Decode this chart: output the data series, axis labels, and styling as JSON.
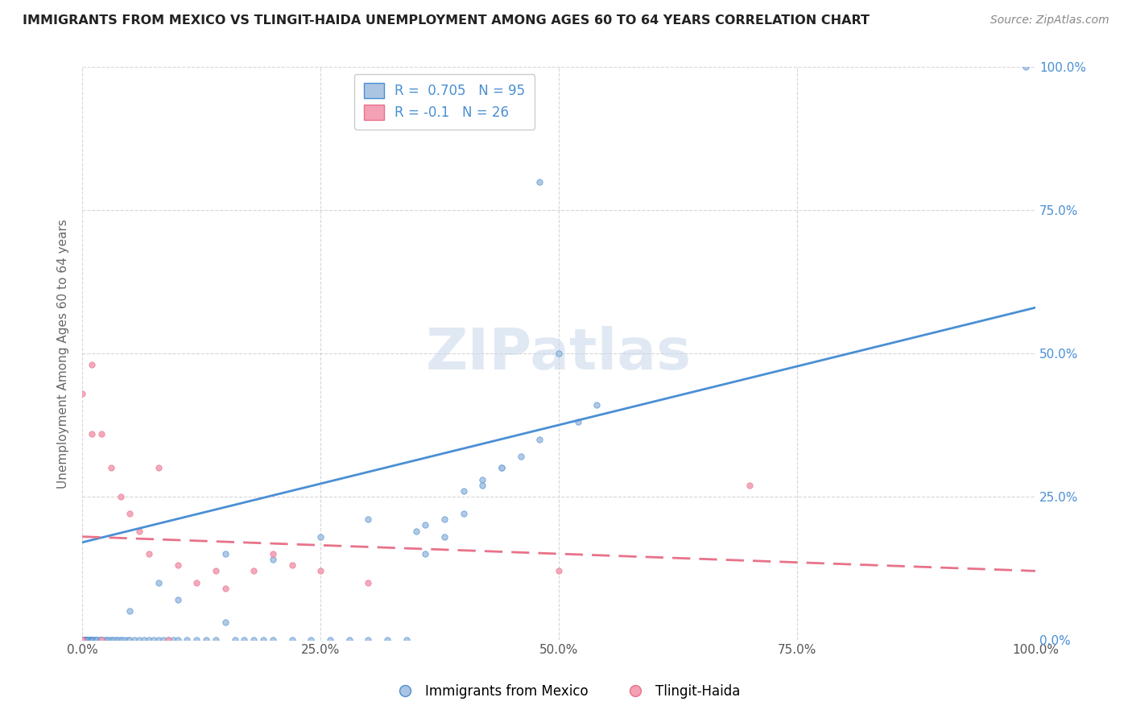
{
  "title": "IMMIGRANTS FROM MEXICO VS TLINGIT-HAIDA UNEMPLOYMENT AMONG AGES 60 TO 64 YEARS CORRELATION CHART",
  "source": "Source: ZipAtlas.com",
  "ylabel": "Unemployment Among Ages 60 to 64 years",
  "xlim": [
    0,
    1.0
  ],
  "ylim": [
    0,
    1.0
  ],
  "xticks": [
    0.0,
    0.25,
    0.5,
    0.75,
    1.0
  ],
  "yticks": [
    0.0,
    0.25,
    0.5,
    0.75,
    1.0
  ],
  "xticklabels": [
    "0.0%",
    "25.0%",
    "50.0%",
    "75.0%",
    "100.0%"
  ],
  "right_yticklabels": [
    "0.0%",
    "25.0%",
    "50.0%",
    "75.0%",
    "100.0%"
  ],
  "blue_R": 0.705,
  "blue_N": 95,
  "pink_R": -0.1,
  "pink_N": 26,
  "blue_color": "#aac4e2",
  "pink_color": "#f4a0b5",
  "blue_line_color": "#4a8fd4",
  "pink_line_color": "#e8728a",
  "blue_line_start_y": 0.17,
  "blue_line_end_y": 0.58,
  "pink_line_start_y": 0.18,
  "pink_line_end_y": 0.12,
  "watermark": "ZIPatlas",
  "legend_label_blue": "Immigrants from Mexico",
  "legend_label_pink": "Tlingit-Haida",
  "blue_x": [
    0.0,
    0.0,
    0.001,
    0.001,
    0.002,
    0.002,
    0.003,
    0.003,
    0.004,
    0.004,
    0.005,
    0.005,
    0.006,
    0.006,
    0.007,
    0.008,
    0.008,
    0.009,
    0.01,
    0.01,
    0.011,
    0.012,
    0.013,
    0.014,
    0.015,
    0.016,
    0.018,
    0.019,
    0.02,
    0.022,
    0.024,
    0.026,
    0.028,
    0.03,
    0.032,
    0.034,
    0.036,
    0.038,
    0.04,
    0.042,
    0.045,
    0.048,
    0.05,
    0.055,
    0.06,
    0.065,
    0.07,
    0.075,
    0.08,
    0.085,
    0.09,
    0.095,
    0.1,
    0.11,
    0.12,
    0.13,
    0.14,
    0.15,
    0.16,
    0.17,
    0.18,
    0.19,
    0.2,
    0.22,
    0.24,
    0.26,
    0.28,
    0.3,
    0.32,
    0.34,
    0.36,
    0.38,
    0.4,
    0.42,
    0.44,
    0.46,
    0.48,
    0.5,
    0.52,
    0.54,
    0.36,
    0.38,
    0.4,
    0.42,
    0.44,
    0.35,
    0.3,
    0.25,
    0.2,
    0.15,
    0.1,
    0.05,
    0.08,
    0.48,
    0.99
  ],
  "blue_y": [
    0.0,
    0.0,
    0.0,
    0.0,
    0.0,
    0.0,
    0.0,
    0.0,
    0.0,
    0.0,
    0.0,
    0.0,
    0.0,
    0.0,
    0.0,
    0.0,
    0.0,
    0.0,
    0.0,
    0.0,
    0.0,
    0.0,
    0.0,
    0.0,
    0.0,
    0.0,
    0.0,
    0.0,
    0.0,
    0.0,
    0.0,
    0.0,
    0.0,
    0.0,
    0.0,
    0.0,
    0.0,
    0.0,
    0.0,
    0.0,
    0.0,
    0.0,
    0.0,
    0.0,
    0.0,
    0.0,
    0.0,
    0.0,
    0.0,
    0.0,
    0.0,
    0.0,
    0.0,
    0.0,
    0.0,
    0.0,
    0.0,
    0.03,
    0.0,
    0.0,
    0.0,
    0.0,
    0.0,
    0.0,
    0.0,
    0.0,
    0.0,
    0.0,
    0.0,
    0.0,
    0.15,
    0.18,
    0.22,
    0.28,
    0.3,
    0.32,
    0.35,
    0.5,
    0.38,
    0.41,
    0.2,
    0.21,
    0.26,
    0.27,
    0.3,
    0.19,
    0.21,
    0.18,
    0.14,
    0.15,
    0.07,
    0.05,
    0.1,
    0.8,
    1.0
  ],
  "pink_x": [
    0.0,
    0.0,
    0.0,
    0.0,
    0.01,
    0.01,
    0.02,
    0.02,
    0.03,
    0.04,
    0.05,
    0.06,
    0.07,
    0.08,
    0.09,
    0.1,
    0.12,
    0.14,
    0.15,
    0.18,
    0.2,
    0.22,
    0.25,
    0.3,
    0.5,
    0.7
  ],
  "pink_y": [
    0.0,
    0.0,
    0.0,
    0.43,
    0.48,
    0.36,
    0.36,
    0.0,
    0.3,
    0.25,
    0.22,
    0.19,
    0.15,
    0.3,
    0.0,
    0.13,
    0.1,
    0.12,
    0.09,
    0.12,
    0.15,
    0.13,
    0.12,
    0.1,
    0.12,
    0.27
  ]
}
